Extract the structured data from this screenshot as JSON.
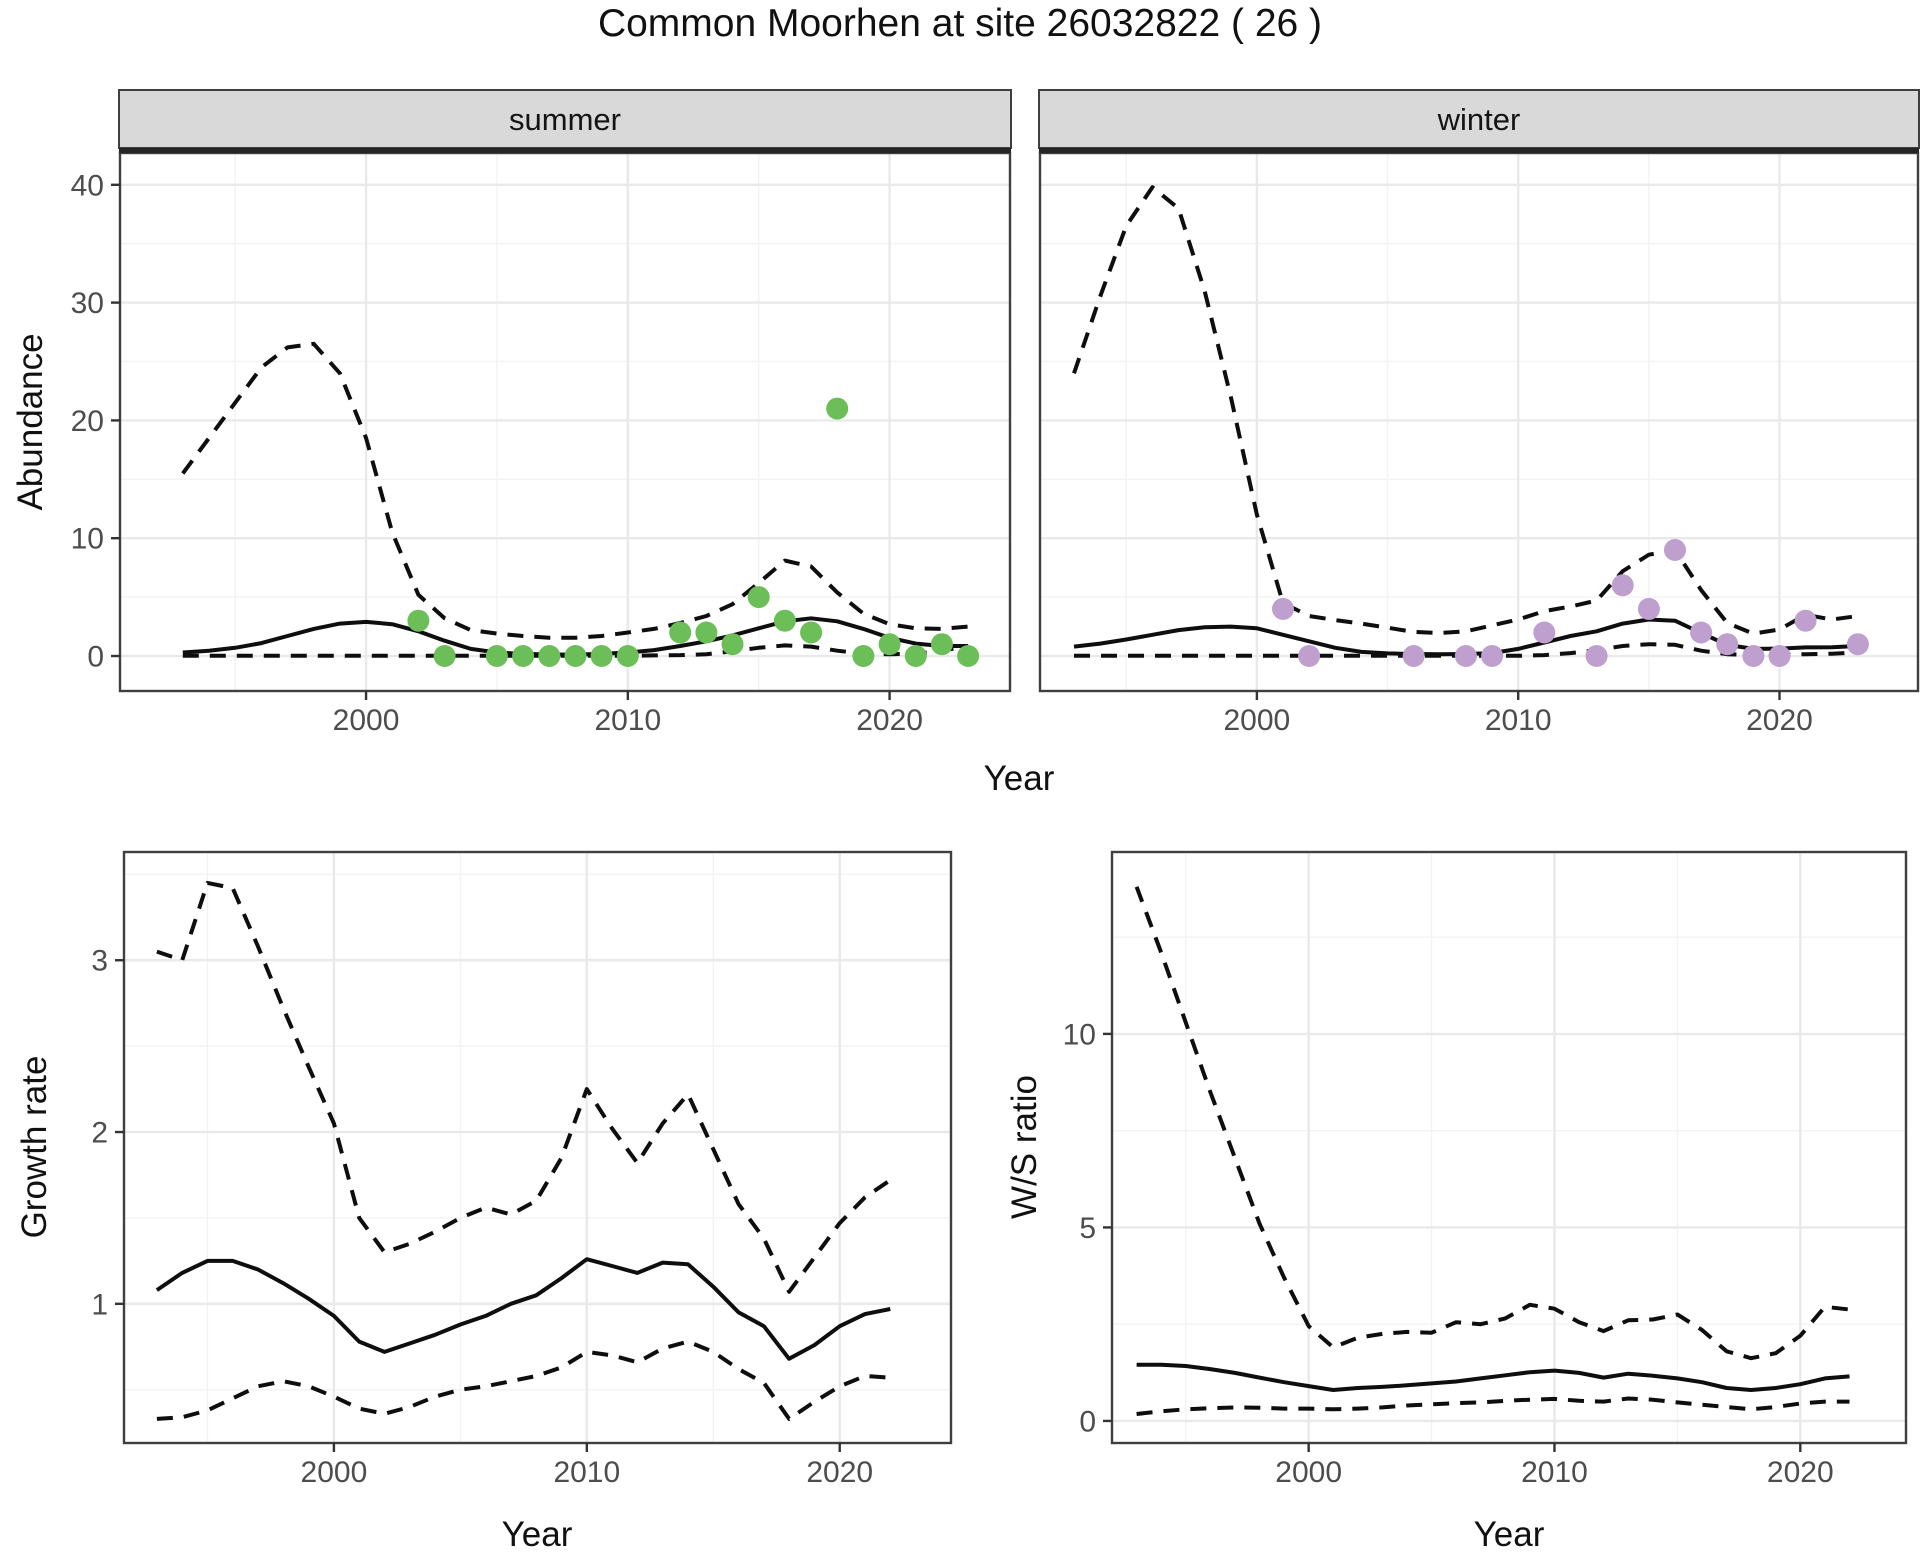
{
  "title": "Common Moorhen at site 26032822 ( 26 )",
  "colors": {
    "summer_point": "#6CBE59",
    "winter_point": "#BE9FCE",
    "strip_fill": "#D9D9D9",
    "strip_border": "#262626",
    "panel_border": "#3F3F3F",
    "grid_major": "#E9E9E9",
    "grid_minor": "#F3F3F3",
    "line_color": "#0E0E0E",
    "tick_mark_color": "#333333",
    "tick_label_color": "#4D4D4D",
    "text_color": "#111111"
  },
  "chart_data": [
    {
      "type": "line+scatter",
      "facet_label": "summer",
      "xlabel": "Year",
      "ylabel": "Abundance",
      "xlim": [
        1990.6,
        2024.6
      ],
      "ylim": [
        -2.97,
        42.7
      ],
      "xticks": [
        2000,
        2010,
        2020
      ],
      "yticks": [
        0,
        10,
        20,
        30,
        40
      ],
      "xminor": [
        1995,
        2005,
        2015
      ],
      "yminor": [
        5,
        15,
        25,
        35
      ],
      "grid": true,
      "legend": "none",
      "series": [
        {
          "name": "upper_ci",
          "style": "dashed",
          "x": [
            1993,
            1994,
            1995,
            1996,
            1997,
            1998,
            1999,
            2000,
            2001,
            2002,
            2003,
            2004,
            2005,
            2006,
            2007,
            2008,
            2009,
            2010,
            2011,
            2012,
            2013,
            2014,
            2015,
            2016,
            2017,
            2018,
            2019,
            2020,
            2021,
            2022,
            2023
          ],
          "y": [
            15.5,
            18.5,
            21.5,
            24.5,
            26.2,
            26.5,
            24,
            18.5,
            10.5,
            5.2,
            3.2,
            2.2,
            1.9,
            1.7,
            1.55,
            1.55,
            1.7,
            2,
            2.3,
            2.8,
            3.4,
            4.4,
            6.2,
            8.1,
            7.6,
            5.4,
            3.6,
            2.7,
            2.35,
            2.3,
            2.5
          ]
        },
        {
          "name": "lower_ci",
          "style": "dashed",
          "x": [
            1993,
            1994,
            1995,
            1996,
            1997,
            1998,
            1999,
            2000,
            2001,
            2002,
            2003,
            2004,
            2005,
            2006,
            2007,
            2008,
            2009,
            2010,
            2011,
            2012,
            2013,
            2014,
            2015,
            2016,
            2017,
            2018,
            2019,
            2020,
            2021,
            2022,
            2023
          ],
          "y": [
            0.02,
            0.02,
            0.02,
            0.02,
            0.02,
            0.02,
            0.02,
            0.02,
            0.02,
            0.02,
            0.02,
            0.02,
            0.02,
            0.02,
            0.02,
            0.02,
            0.02,
            0.02,
            0.05,
            0.08,
            0.15,
            0.4,
            0.7,
            0.9,
            0.8,
            0.45,
            0.2,
            0.15,
            0.2,
            0.45,
            0.85
          ]
        },
        {
          "name": "fit",
          "style": "solid",
          "x": [
            1993,
            1994,
            1995,
            1996,
            1997,
            1998,
            1999,
            2000,
            2001,
            2002,
            2003,
            2004,
            2005,
            2006,
            2007,
            2008,
            2009,
            2010,
            2011,
            2012,
            2013,
            2014,
            2015,
            2016,
            2017,
            2018,
            2019,
            2020,
            2021,
            2022,
            2023
          ],
          "y": [
            0.3,
            0.45,
            0.7,
            1.1,
            1.7,
            2.3,
            2.75,
            2.9,
            2.7,
            2.1,
            1.3,
            0.6,
            0.3,
            0.18,
            0.13,
            0.12,
            0.18,
            0.3,
            0.5,
            0.85,
            1.25,
            1.75,
            2.35,
            2.95,
            3.2,
            2.95,
            2.3,
            1.55,
            1.05,
            0.85,
            0.85
          ]
        }
      ],
      "points": {
        "name": "observed_summer_counts",
        "color": "#6CBE59",
        "x": [
          2002,
          2003,
          2005,
          2006,
          2007,
          2008,
          2009,
          2010,
          2012,
          2013,
          2014,
          2015,
          2016,
          2017,
          2018,
          2019,
          2020,
          2021,
          2022,
          2023
        ],
        "y": [
          3,
          0,
          0,
          0,
          0,
          0,
          0,
          0,
          2,
          2,
          1,
          5,
          3,
          2,
          21,
          0,
          1,
          0,
          1,
          0
        ]
      }
    },
    {
      "type": "line+scatter",
      "facet_label": "winter",
      "xlabel": "Year",
      "ylabel": "",
      "xlim": [
        1991.7,
        2025.3
      ],
      "ylim": [
        -2.97,
        42.7
      ],
      "xticks": [
        2000,
        2010,
        2020
      ],
      "yticks": [
        0,
        10,
        20,
        30,
        40
      ],
      "xminor": [
        1995,
        2005,
        2015
      ],
      "yminor": [
        5,
        15,
        25,
        35
      ],
      "grid": true,
      "legend": "none",
      "series": [
        {
          "name": "upper_ci",
          "style": "dashed",
          "x": [
            1993,
            1994,
            1995,
            1996,
            1997,
            1998,
            1999,
            2000,
            2001,
            2002,
            2003,
            2004,
            2005,
            2006,
            2007,
            2008,
            2009,
            2010,
            2011,
            2012,
            2013,
            2014,
            2015,
            2016,
            2017,
            2018,
            2019,
            2020,
            2021,
            2022,
            2023
          ],
          "y": [
            24,
            30.5,
            36.5,
            39.8,
            38,
            31,
            22,
            12,
            4.5,
            3.4,
            3.05,
            2.75,
            2.4,
            2.05,
            1.95,
            2.1,
            2.6,
            3.1,
            3.8,
            4.2,
            4.7,
            7.2,
            8.6,
            9.0,
            5.6,
            2.8,
            1.9,
            2.25,
            3.5,
            3.1,
            3.4
          ]
        },
        {
          "name": "lower_ci",
          "style": "dashed",
          "x": [
            1993,
            1994,
            1995,
            1996,
            1997,
            1998,
            1999,
            2000,
            2001,
            2002,
            2003,
            2004,
            2005,
            2006,
            2007,
            2008,
            2009,
            2010,
            2011,
            2012,
            2013,
            2014,
            2015,
            2016,
            2017,
            2018,
            2019,
            2020,
            2021,
            2022,
            2023
          ],
          "y": [
            0.02,
            0.02,
            0.02,
            0.02,
            0.02,
            0.02,
            0.02,
            0.02,
            0.02,
            0.02,
            0.02,
            0.02,
            0.02,
            0.02,
            0.02,
            0.02,
            0.02,
            0.02,
            0.08,
            0.25,
            0.5,
            0.85,
            1.0,
            0.95,
            0.45,
            0.15,
            0.08,
            0.1,
            0.15,
            0.2,
            0.3
          ]
        },
        {
          "name": "fit",
          "style": "solid",
          "x": [
            1993,
            1994,
            1995,
            1996,
            1997,
            1998,
            1999,
            2000,
            2001,
            2002,
            2003,
            2004,
            2005,
            2006,
            2007,
            2008,
            2009,
            2010,
            2011,
            2012,
            2013,
            2014,
            2015,
            2016,
            2017,
            2018,
            2019,
            2020,
            2021,
            2022,
            2023
          ],
          "y": [
            0.8,
            1.05,
            1.4,
            1.8,
            2.2,
            2.45,
            2.5,
            2.35,
            1.8,
            1.25,
            0.7,
            0.35,
            0.22,
            0.17,
            0.15,
            0.17,
            0.25,
            0.6,
            1.15,
            1.7,
            2.1,
            2.75,
            3.1,
            3.0,
            1.95,
            0.95,
            0.6,
            0.63,
            0.73,
            0.75,
            0.85
          ]
        }
      ],
      "points": {
        "name": "observed_winter_counts",
        "color": "#BE9FCE",
        "x": [
          2001,
          2002,
          2006,
          2008,
          2009,
          2011,
          2013,
          2014,
          2015,
          2016,
          2017,
          2018,
          2019,
          2020,
          2021,
          2023
        ],
        "y": [
          4,
          0,
          0,
          0,
          0,
          2,
          0,
          6,
          4,
          9,
          2,
          1,
          0,
          0,
          3,
          1
        ]
      }
    },
    {
      "type": "line",
      "facet_label": "",
      "xlabel": "Year",
      "ylabel": "Growth rate",
      "xlim": [
        1991.7,
        2024.4
      ],
      "ylim": [
        0.19,
        3.63
      ],
      "xticks": [
        2000,
        2010,
        2020
      ],
      "yticks": [
        1,
        2,
        3
      ],
      "xminor": [
        1995,
        2005,
        2015
      ],
      "yminor": [
        0.5,
        1.5,
        2.5,
        3.5
      ],
      "grid": true,
      "legend": "none",
      "series": [
        {
          "name": "upper_ci",
          "style": "dashed",
          "x": [
            1993,
            1994,
            1995,
            1996,
            1997,
            1998,
            1999,
            2000,
            2001,
            2002,
            2003,
            2004,
            2005,
            2006,
            2007,
            2008,
            2009,
            2010,
            2011,
            2012,
            2013,
            2014,
            2015,
            2016,
            2017,
            2018,
            2019,
            2020,
            2021,
            2022
          ],
          "y": [
            3.05,
            3.0,
            3.45,
            3.42,
            3.08,
            2.72,
            2.38,
            2.05,
            1.5,
            1.3,
            1.35,
            1.42,
            1.5,
            1.56,
            1.52,
            1.6,
            1.85,
            2.25,
            2.02,
            1.82,
            2.05,
            2.22,
            1.9,
            1.58,
            1.38,
            1.07,
            1.27,
            1.47,
            1.62,
            1.72
          ]
        },
        {
          "name": "lower_ci",
          "style": "dashed",
          "x": [
            1993,
            1994,
            1995,
            1996,
            1997,
            1998,
            1999,
            2000,
            2001,
            2002,
            2003,
            2004,
            2005,
            2006,
            2007,
            2008,
            2009,
            2010,
            2011,
            2012,
            2013,
            2014,
            2015,
            2016,
            2017,
            2018,
            2019,
            2020,
            2021,
            2022
          ],
          "y": [
            0.33,
            0.34,
            0.38,
            0.45,
            0.52,
            0.55,
            0.52,
            0.46,
            0.39,
            0.36,
            0.4,
            0.46,
            0.5,
            0.52,
            0.55,
            0.58,
            0.63,
            0.72,
            0.7,
            0.66,
            0.74,
            0.78,
            0.72,
            0.62,
            0.54,
            0.33,
            0.43,
            0.52,
            0.58,
            0.57
          ]
        },
        {
          "name": "fit",
          "style": "solid",
          "x": [
            1993,
            1994,
            1995,
            1996,
            1997,
            1998,
            1999,
            2000,
            2001,
            2002,
            2003,
            2004,
            2005,
            2006,
            2007,
            2008,
            2009,
            2010,
            2011,
            2012,
            2013,
            2014,
            2015,
            2016,
            2017,
            2018,
            2019,
            2020,
            2021,
            2022
          ],
          "y": [
            1.08,
            1.18,
            1.25,
            1.25,
            1.2,
            1.12,
            1.03,
            0.93,
            0.78,
            0.72,
            0.77,
            0.82,
            0.88,
            0.93,
            1.0,
            1.05,
            1.15,
            1.26,
            1.22,
            1.18,
            1.24,
            1.23,
            1.1,
            0.95,
            0.87,
            0.68,
            0.76,
            0.87,
            0.94,
            0.97
          ]
        }
      ]
    },
    {
      "type": "line",
      "facet_label": "",
      "xlabel": "Year",
      "ylabel": "W/S ratio",
      "xlim": [
        1992.0,
        2024.3
      ],
      "ylim": [
        -0.57,
        14.7
      ],
      "xticks": [
        2000,
        2010,
        2020
      ],
      "yticks": [
        0,
        5,
        10
      ],
      "xminor": [
        1995,
        2005,
        2015
      ],
      "yminor": [
        2.5,
        7.5,
        12.5
      ],
      "grid": true,
      "legend": "none",
      "series": [
        {
          "name": "upper_ci",
          "style": "dashed",
          "x": [
            1993,
            1994,
            1995,
            1996,
            1997,
            1998,
            1999,
            2000,
            2001,
            2002,
            2003,
            2004,
            2005,
            2006,
            2007,
            2008,
            2009,
            2010,
            2011,
            2012,
            2013,
            2014,
            2015,
            2016,
            2017,
            2018,
            2019,
            2020,
            2021,
            2022
          ],
          "y": [
            13.8,
            12.1,
            10.3,
            8.5,
            6.8,
            5.1,
            3.7,
            2.45,
            1.9,
            2.15,
            2.25,
            2.3,
            2.28,
            2.55,
            2.5,
            2.65,
            3.0,
            2.9,
            2.55,
            2.32,
            2.6,
            2.62,
            2.75,
            2.35,
            1.8,
            1.62,
            1.75,
            2.2,
            2.95,
            2.88
          ]
        },
        {
          "name": "lower_ci",
          "style": "dashed",
          "x": [
            1993,
            1994,
            1995,
            1996,
            1997,
            1998,
            1999,
            2000,
            2001,
            2002,
            2003,
            2004,
            2005,
            2006,
            2007,
            2008,
            2009,
            2010,
            2011,
            2012,
            2013,
            2014,
            2015,
            2016,
            2017,
            2018,
            2019,
            2020,
            2021,
            2022
          ],
          "y": [
            0.18,
            0.25,
            0.3,
            0.33,
            0.35,
            0.34,
            0.32,
            0.32,
            0.3,
            0.32,
            0.35,
            0.4,
            0.43,
            0.46,
            0.48,
            0.52,
            0.55,
            0.57,
            0.52,
            0.5,
            0.58,
            0.55,
            0.48,
            0.42,
            0.36,
            0.3,
            0.36,
            0.45,
            0.5,
            0.5
          ]
        },
        {
          "name": "fit",
          "style": "solid",
          "x": [
            1993,
            1994,
            1995,
            1996,
            1997,
            1998,
            1999,
            2000,
            2001,
            2002,
            2003,
            2004,
            2005,
            2006,
            2007,
            2008,
            2009,
            2010,
            2011,
            2012,
            2013,
            2014,
            2015,
            2016,
            2017,
            2018,
            2019,
            2020,
            2021,
            2022
          ],
          "y": [
            1.45,
            1.45,
            1.42,
            1.34,
            1.24,
            1.12,
            1.0,
            0.9,
            0.8,
            0.85,
            0.88,
            0.92,
            0.97,
            1.02,
            1.1,
            1.18,
            1.26,
            1.3,
            1.24,
            1.12,
            1.22,
            1.17,
            1.1,
            1.0,
            0.85,
            0.8,
            0.85,
            0.95,
            1.1,
            1.15
          ]
        }
      ]
    }
  ]
}
